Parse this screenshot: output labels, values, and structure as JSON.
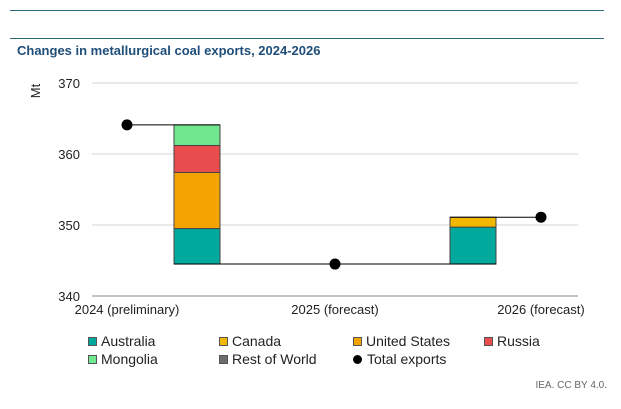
{
  "title": "Changes in metallurgical coal exports, 2024-2026",
  "source": "IEA. CC BY 4.0.",
  "colors": {
    "Australia": "#00a99d",
    "Canada": "#f2b800",
    "United States": "#f5a300",
    "Russia": "#e84c4c",
    "Mongolia": "#6fe88f",
    "Rest of World": "#6d6d6d",
    "Total exports": "#000000"
  },
  "chart_data": {
    "type": "waterfall",
    "title": "Changes in metallurgical coal exports, 2024-2026",
    "ylabel": "Mt",
    "ylim": [
      340,
      370
    ],
    "yticks": [
      340,
      350,
      360,
      370
    ],
    "categories": [
      "2024 (preliminary)",
      "2025 (forecast)",
      "2026 (forecast)"
    ],
    "totals": [
      {
        "label": "2024 (preliminary)",
        "value": 364.1
      },
      {
        "label": "2025 (forecast)",
        "value": 344.5
      },
      {
        "label": "2026 (forecast)",
        "value": 351.1
      }
    ],
    "changes": [
      {
        "period": "2024-2025",
        "segments": [
          {
            "series": "Australia",
            "from": 344.5,
            "to": 349.5
          },
          {
            "series": "United States",
            "from": 349.5,
            "to": 357.4
          },
          {
            "series": "Russia",
            "from": 357.4,
            "to": 361.2
          },
          {
            "series": "Mongolia",
            "from": 361.2,
            "to": 364.1
          }
        ]
      },
      {
        "period": "2025-2026",
        "segments": [
          {
            "series": "Australia",
            "from": 344.5,
            "to": 349.7
          },
          {
            "series": "Canada",
            "from": 349.7,
            "to": 351.1
          }
        ]
      }
    ],
    "legend": [
      "Australia",
      "Canada",
      "United States",
      "Russia",
      "Mongolia",
      "Rest of World",
      "Total exports"
    ],
    "legend_position": "bottom",
    "grid": true
  }
}
